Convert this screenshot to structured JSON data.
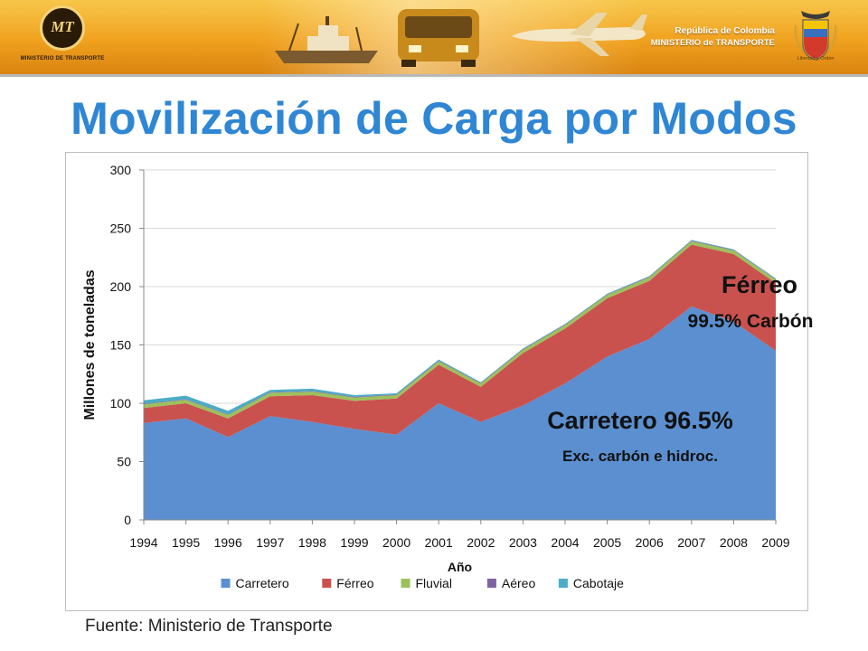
{
  "header": {
    "logo_caption": "MINISTERIO DE TRANSPORTE",
    "logo_mark": "MT",
    "government_line1": "República de Colombia",
    "government_line2": "MINISTERIO de TRANSPORTE",
    "crest_caption": "Libertad y Orden",
    "icons": [
      "ministry-logo-icon",
      "ship-icon",
      "bus-icon",
      "airplane-icon",
      "coat-of-arms-icon"
    ]
  },
  "title": "Movilización de Carga por Modos",
  "source": "Fuente: Ministerio de Transporte",
  "annotations": {
    "ferreo": "Férreo",
    "ferreo_sub": "99.5% Carbón",
    "carretero": "Carretero 96.5%",
    "carretero_sub": "Exc. carbón e hidroc."
  },
  "chart_data": {
    "type": "area",
    "stacked": true,
    "xlabel": "Año",
    "ylabel": "Millones de toneladas",
    "ylim": [
      0,
      300
    ],
    "yticks": [
      0,
      50,
      100,
      150,
      200,
      250,
      300
    ],
    "grid": true,
    "legend_position": "bottom",
    "x": [
      "1994",
      "1995",
      "1996",
      "1997",
      "1998",
      "1999",
      "2000",
      "2001",
      "2002",
      "2003",
      "2004",
      "2005",
      "2006",
      "2007",
      "2008",
      "2009"
    ],
    "series": [
      {
        "name": "Carretero",
        "color": "#5b8fd0",
        "values": [
          83,
          87,
          71,
          89,
          84,
          78,
          73,
          100,
          84,
          98,
          117,
          140,
          155,
          183,
          170,
          145
        ]
      },
      {
        "name": "Férreo",
        "color": "#c9524e",
        "values": [
          13,
          13,
          16,
          17,
          23,
          24,
          31,
          33,
          30,
          45,
          47,
          50,
          50,
          53,
          58,
          58
        ]
      },
      {
        "name": "Fluvial",
        "color": "#9cc15c",
        "values": [
          3,
          3,
          3,
          3,
          3,
          3,
          3,
          3,
          3,
          3,
          3,
          3,
          3,
          3,
          3,
          3
        ]
      },
      {
        "name": "Aéreo",
        "color": "#8064a2",
        "values": [
          0.5,
          0.5,
          0.5,
          0.5,
          0.5,
          0.5,
          0.5,
          0.5,
          0.5,
          0.5,
          0.5,
          0.5,
          0.5,
          0.5,
          0.5,
          0.5
        ]
      },
      {
        "name": "Cabotaje",
        "color": "#4bacc6",
        "values": [
          3,
          3,
          3,
          2,
          2,
          1.5,
          1,
          1,
          0.5,
          0.5,
          0.5,
          0.5,
          0.5,
          0.5,
          0.5,
          0.5
        ]
      }
    ]
  }
}
